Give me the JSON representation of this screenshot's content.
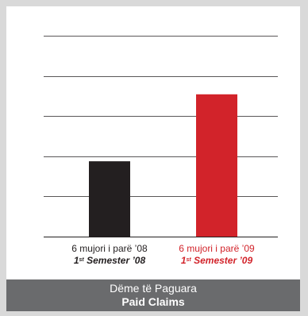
{
  "chart_data": {
    "type": "bar",
    "categories": [
      {
        "line1": "6 mujori i parë ’08",
        "ordinal": "1",
        "ordinal_suffix": "st",
        "semester": "Semester ’08",
        "color": "#231f20"
      },
      {
        "line1": "6 mujori i parë ’09",
        "ordinal": "1",
        "ordinal_suffix": "st",
        "semester": "Semester ’09",
        "color": "#d2232a"
      }
    ],
    "values": [
      45,
      85
    ],
    "ylim": [
      0,
      120
    ],
    "gridlines": [
      0,
      24,
      48,
      72,
      96,
      120
    ],
    "grid": true,
    "title": "Dëme të Paguara",
    "subtitle": "Paid Claims",
    "colors": {
      "gridline": "#231f20",
      "footer_bg": "#6a6b6d",
      "frame": "#d9d9d9"
    }
  }
}
